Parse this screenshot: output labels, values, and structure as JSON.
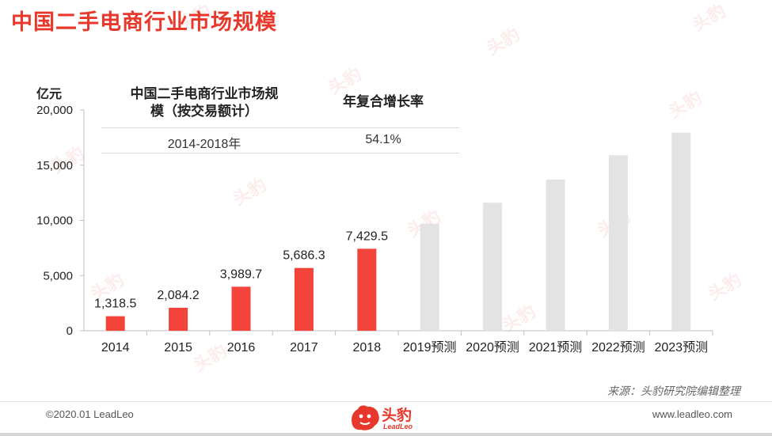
{
  "page": {
    "title": "中国二手电商行业市场规模",
    "source_note": "来源：头豹研究院编辑整理",
    "copyright": "©2020.01 LeadLeo",
    "website": "www.leadleo.com",
    "logo_cn": "头豹",
    "logo_en": "LeadLeo",
    "watermark_text": "头豹",
    "brand_color": "#e8382b"
  },
  "summary_table": {
    "header_metric": "中国二手电商行业市场规模（按交易额计）",
    "header_metric_line1": "中国二手电商行业市场规",
    "header_metric_line2": "模（按交易额计）",
    "header_cagr": "年复合增长率",
    "period": "2014-2018年",
    "cagr": "54.1%"
  },
  "chart_data": {
    "type": "bar",
    "ylabel": "亿元",
    "ylim": [
      0,
      20000
    ],
    "yticks": [
      0,
      5000,
      10000,
      15000,
      20000
    ],
    "ytick_labels": [
      "0",
      "5,000",
      "10,000",
      "15,000",
      "20,000"
    ],
    "categories": [
      "2014",
      "2015",
      "2016",
      "2017",
      "2018",
      "2019预测",
      "2020预测",
      "2021预测",
      "2022预测",
      "2023预测"
    ],
    "values": [
      1318.5,
      2084.2,
      3989.7,
      5686.3,
      7429.5,
      9700,
      11600,
      13700,
      15900,
      17950
    ],
    "value_labels": [
      "1,318.5",
      "2,084.2",
      "3,989.7",
      "5,686.3",
      "7,429.5",
      "",
      "",
      "",
      "",
      ""
    ],
    "bar_colors": [
      "#f2443a",
      "#f2443a",
      "#f2443a",
      "#f2443a",
      "#f2443a",
      "#e3e3e3",
      "#e3e3e3",
      "#e3e3e3",
      "#e3e3e3",
      "#e3e3e3"
    ],
    "grid": false,
    "legend": "none"
  }
}
